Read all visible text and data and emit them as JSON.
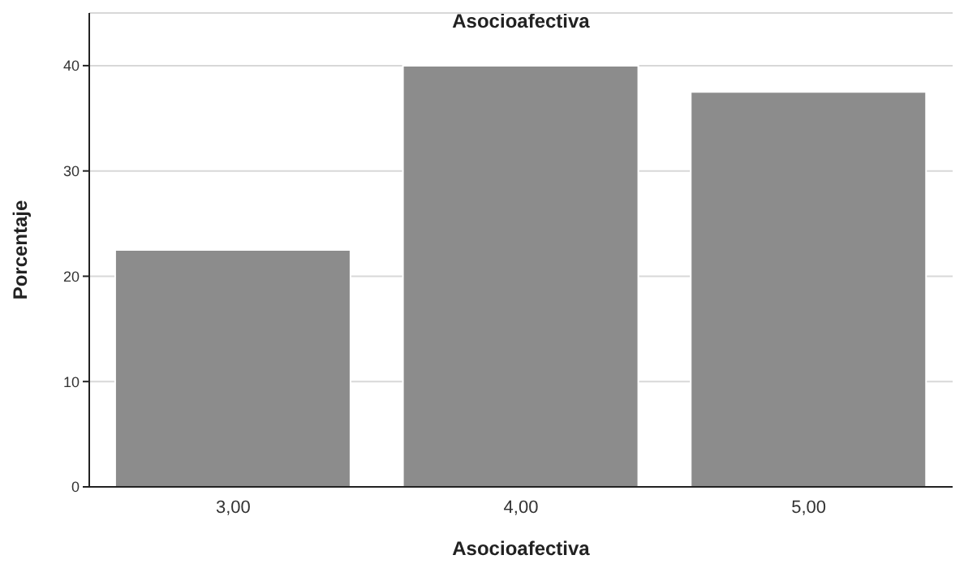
{
  "chart_data": {
    "type": "bar",
    "title": "Asocioafectiva",
    "xlabel": "Asocioafectiva",
    "ylabel": "Porcentaje",
    "categories": [
      "3,00",
      "4,00",
      "5,00"
    ],
    "values": [
      22.5,
      40,
      37.5
    ],
    "color": "#8c8c8c",
    "ylim": [
      0,
      45
    ],
    "yticks": [
      0,
      10,
      20,
      30,
      40
    ],
    "grid": "y",
    "legend": false
  }
}
